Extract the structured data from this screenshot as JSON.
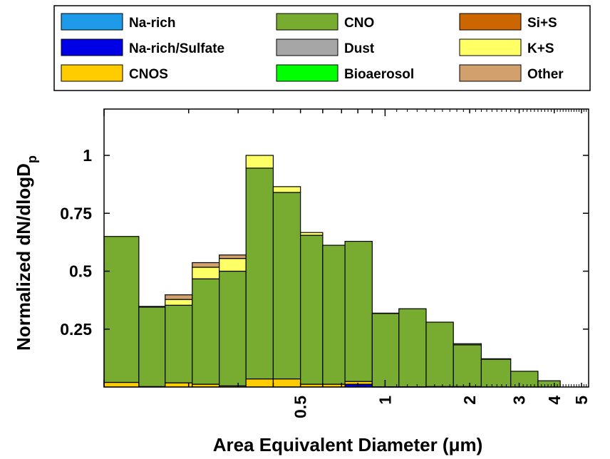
{
  "chart_data": {
    "type": "bar",
    "stacked": true,
    "xlabel": "Area Equivalent Diameter (μm)",
    "ylabel": "Normalized dN/dlogD",
    "ylabel_subscript": "p",
    "x_scale": "log",
    "xlim": [
      0.1,
      5.3
    ],
    "ylim": [
      0,
      1.2
    ],
    "y_ticks": [
      0.25,
      0.5,
      0.75,
      1
    ],
    "y_tick_labels": [
      "0.25",
      "0.5",
      "0.75",
      "1"
    ],
    "x_ticks": [
      0.5,
      1,
      2,
      3,
      4,
      5
    ],
    "x_tick_labels": [
      "0.5",
      "1",
      "2",
      "3",
      "4",
      "5"
    ],
    "legend_position": "top",
    "bin_edges": [
      0.1,
      0.133,
      0.165,
      0.206,
      0.257,
      0.32,
      0.4,
      0.5,
      0.6,
      0.72,
      0.9,
      1.12,
      1.4,
      1.75,
      2.2,
      2.8,
      3.5,
      4.2
    ],
    "series": [
      {
        "name": "Na-rich",
        "color": "#1e9be8",
        "values": [
          0,
          0,
          0,
          0,
          0,
          0,
          0,
          0,
          0,
          0,
          0,
          0,
          0,
          0,
          0,
          0,
          0
        ]
      },
      {
        "name": "Na-rich/Sulfate",
        "color": "#0000e6",
        "values": [
          0,
          0,
          0,
          0,
          0,
          0,
          0,
          0,
          0,
          0.012,
          0,
          0,
          0,
          0,
          0,
          0,
          0
        ]
      },
      {
        "name": "CNOS",
        "color": "#ffcc00",
        "values": [
          0.02,
          0.002,
          0.018,
          0.012,
          0.005,
          0.035,
          0.035,
          0.012,
          0.012,
          0.012,
          0.001,
          0.001,
          0.002,
          0.002,
          0,
          0,
          0
        ]
      },
      {
        "name": "CNO",
        "color": "#77ac30",
        "values": [
          0.63,
          0.343,
          0.335,
          0.455,
          0.495,
          0.91,
          0.805,
          0.643,
          0.6,
          0.605,
          0.317,
          0.337,
          0.278,
          0.18,
          0.12,
          0.068,
          0.027
        ]
      },
      {
        "name": "Dust",
        "color": "#a6a6a6",
        "values": [
          0,
          0,
          0,
          0,
          0,
          0,
          0,
          0,
          0,
          0,
          0,
          0,
          0,
          0.005,
          0,
          0,
          0
        ]
      },
      {
        "name": "Bioaerosol",
        "color": "#00ff00",
        "values": [
          0,
          0,
          0,
          0,
          0,
          0,
          0,
          0,
          0,
          0,
          0,
          0,
          0,
          0,
          0,
          0,
          0
        ]
      },
      {
        "name": "Si+S",
        "color": "#cc6600",
        "values": [
          0,
          0,
          0,
          0,
          0,
          0,
          0,
          0,
          0,
          0,
          0,
          0,
          0,
          0,
          0,
          0,
          0
        ]
      },
      {
        "name": "K+S",
        "color": "#ffff66",
        "values": [
          0,
          0.003,
          0.025,
          0.05,
          0.055,
          0.055,
          0.025,
          0.012,
          0,
          0,
          0,
          0,
          0,
          0,
          0.002,
          0,
          0
        ]
      },
      {
        "name": "Other",
        "color": "#d2a06c",
        "values": [
          0,
          0,
          0.02,
          0.02,
          0.015,
          0,
          0,
          0,
          0,
          0,
          0.001,
          0,
          0,
          0,
          0,
          0,
          0
        ]
      }
    ]
  }
}
